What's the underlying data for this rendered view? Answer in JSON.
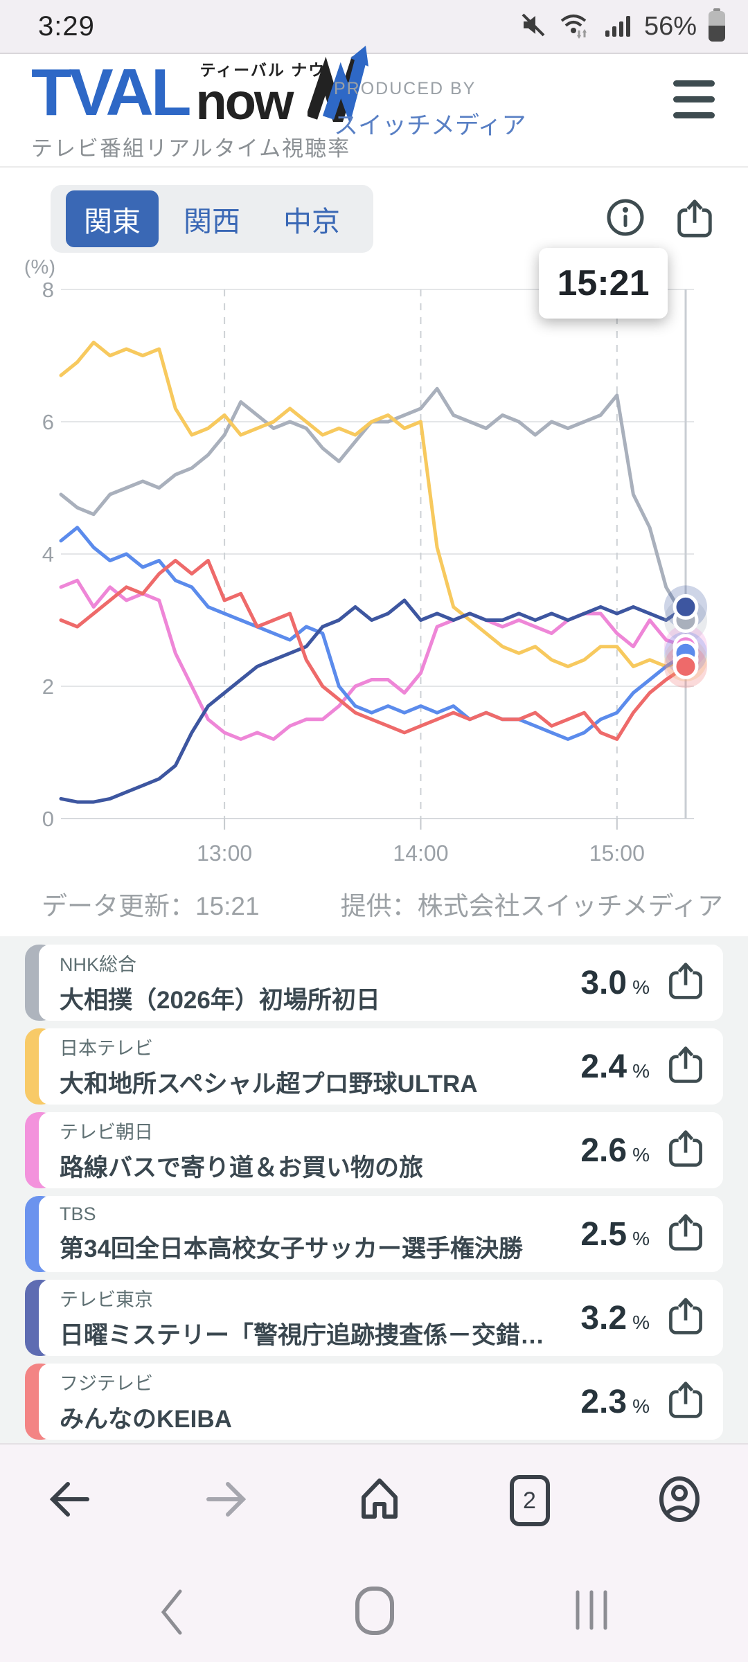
{
  "status_bar": {
    "time": "3:29",
    "battery_percent": "56%"
  },
  "header": {
    "logo_tval": "TVAL",
    "logo_now": "now",
    "logo_furigana": "ティーバル ナウ",
    "tagline": "テレビ番組リアルタイム視聴率",
    "produced_by": "PRODUCED BY",
    "producer": "スイッチメディア"
  },
  "region_tabs": [
    {
      "label": "関東",
      "selected": true
    },
    {
      "label": "関西",
      "selected": false
    },
    {
      "label": "中京",
      "selected": false
    }
  ],
  "chart": {
    "tooltip_time": "15:21",
    "unit_label": "(%)",
    "update_label": "データ更新：15:21",
    "provider_label": "提供：株式会社スイッチメディア"
  },
  "chart_data": {
    "type": "line",
    "title": "テレビ番組リアルタイム視聴率（関東）",
    "ylabel": "(%)",
    "ylim": [
      0,
      8
    ],
    "yticks": [
      8,
      6,
      4,
      2,
      0
    ],
    "x_unit": "minutes from 12:10",
    "x_minutes": [
      0,
      5,
      10,
      15,
      20,
      25,
      30,
      35,
      40,
      45,
      50,
      55,
      60,
      65,
      70,
      75,
      80,
      85,
      90,
      95,
      100,
      105,
      110,
      115,
      120,
      125,
      130,
      135,
      140,
      145,
      150,
      155,
      160,
      165,
      170,
      175,
      180,
      185,
      191
    ],
    "xticks": [
      {
        "t": 50,
        "label": "13:00"
      },
      {
        "t": 110,
        "label": "14:00"
      },
      {
        "t": 170,
        "label": "15:00"
      }
    ],
    "current_time_minute": 191,
    "grid": true,
    "series": [
      {
        "name": "NHK総合",
        "color": "#a9b0bc",
        "values": [
          4.9,
          4.7,
          4.6,
          4.9,
          5.0,
          5.1,
          5.0,
          5.2,
          5.3,
          5.5,
          5.8,
          6.3,
          6.1,
          5.9,
          6.0,
          5.9,
          5.6,
          5.4,
          5.7,
          6.0,
          6.0,
          6.1,
          6.2,
          6.5,
          6.1,
          6.0,
          5.9,
          6.1,
          6.0,
          5.8,
          6.0,
          5.9,
          6.0,
          6.1,
          6.4,
          4.9,
          4.4,
          3.5,
          3.0
        ]
      },
      {
        "name": "日本テレビ",
        "color": "#f7c95e",
        "values": [
          6.7,
          6.9,
          7.2,
          7.0,
          7.1,
          7.0,
          7.1,
          6.2,
          5.8,
          5.9,
          6.1,
          5.8,
          5.9,
          6.0,
          6.2,
          6.0,
          5.8,
          5.9,
          5.8,
          6.0,
          6.1,
          5.9,
          6.0,
          4.1,
          3.2,
          3.0,
          2.8,
          2.6,
          2.5,
          2.6,
          2.4,
          2.3,
          2.4,
          2.6,
          2.6,
          2.3,
          2.4,
          2.3,
          2.4
        ]
      },
      {
        "name": "テレビ朝日",
        "color": "#ee86d7",
        "values": [
          3.5,
          3.6,
          3.2,
          3.5,
          3.3,
          3.4,
          3.3,
          2.5,
          2.0,
          1.5,
          1.3,
          1.2,
          1.3,
          1.2,
          1.4,
          1.5,
          1.5,
          1.7,
          2.0,
          2.1,
          2.1,
          1.9,
          2.2,
          2.9,
          3.0,
          3.1,
          3.0,
          2.9,
          3.0,
          2.9,
          2.8,
          3.0,
          3.1,
          3.1,
          2.8,
          2.6,
          3.0,
          2.7,
          2.6
        ]
      },
      {
        "name": "TBS",
        "color": "#5b8bec",
        "values": [
          4.2,
          4.4,
          4.1,
          3.9,
          4.0,
          3.8,
          3.9,
          3.6,
          3.5,
          3.2,
          3.1,
          3.0,
          2.9,
          2.8,
          2.7,
          2.9,
          2.8,
          2.0,
          1.7,
          1.6,
          1.7,
          1.6,
          1.7,
          1.6,
          1.7,
          1.5,
          1.6,
          1.5,
          1.5,
          1.4,
          1.3,
          1.2,
          1.3,
          1.5,
          1.6,
          1.9,
          2.1,
          2.3,
          2.5
        ]
      },
      {
        "name": "テレビ東京",
        "color": "#3d56a0",
        "values": [
          0.3,
          0.25,
          0.25,
          0.3,
          0.4,
          0.5,
          0.6,
          0.8,
          1.3,
          1.7,
          1.9,
          2.1,
          2.3,
          2.4,
          2.5,
          2.6,
          2.9,
          3.0,
          3.2,
          3.0,
          3.1,
          3.3,
          3.0,
          3.1,
          3.0,
          3.1,
          3.0,
          3.0,
          3.1,
          3.0,
          3.1,
          3.0,
          3.1,
          3.2,
          3.1,
          3.2,
          3.1,
          3.0,
          3.2
        ]
      },
      {
        "name": "フジテレビ",
        "color": "#ee6a6a",
        "values": [
          3.0,
          2.9,
          3.1,
          3.3,
          3.5,
          3.4,
          3.7,
          3.9,
          3.7,
          3.9,
          3.3,
          3.4,
          2.9,
          3.0,
          3.1,
          2.4,
          2.0,
          1.8,
          1.6,
          1.5,
          1.4,
          1.3,
          1.4,
          1.5,
          1.6,
          1.5,
          1.6,
          1.5,
          1.5,
          1.6,
          1.4,
          1.5,
          1.6,
          1.3,
          1.2,
          1.6,
          1.9,
          2.1,
          2.3
        ]
      }
    ],
    "legend_position": "none"
  },
  "programs": [
    {
      "station": "NHK総合",
      "title": "大相撲（2026年）初場所初日",
      "rating": "3.0",
      "unit": "%",
      "strip_color": "#aeb4bd"
    },
    {
      "station": "日本テレビ",
      "title": "大和地所スペシャル超プロ野球ULTRA",
      "rating": "2.4",
      "unit": "%",
      "strip_color": "#f8ca67"
    },
    {
      "station": "テレビ朝日",
      "title": "路線バスで寄り道＆お買い物の旅",
      "rating": "2.6",
      "unit": "%",
      "strip_color": "#f392dc"
    },
    {
      "station": "TBS",
      "title": "第34回全日本高校女子サッカー選手権決勝",
      "rating": "2.5",
      "unit": "%",
      "strip_color": "#6b93ee"
    },
    {
      "station": "テレビ東京",
      "title": "日曜ミステリー「警視庁追跡捜査係－交錯…",
      "rating": "3.2",
      "unit": "%",
      "strip_color": "#5e6cb2"
    },
    {
      "station": "フジテレビ",
      "title": "みんなのKEIBA",
      "rating": "2.3",
      "unit": "%",
      "strip_color": "#f38484"
    }
  ],
  "browser_toolbar": {
    "tab_count": "2"
  },
  "icons": [
    "mute-icon",
    "wifi-icon",
    "signal-icon",
    "battery-icon",
    "menu-icon",
    "info-icon",
    "share-icon",
    "back-icon",
    "forward-icon",
    "home-icon",
    "tabs-icon",
    "profile-icon",
    "nav-back-icon",
    "nav-home-icon",
    "nav-recents-icon"
  ],
  "colors": {
    "accent_blue": "#3a68b5",
    "logo_blue": "#2e68c6",
    "dark_slate": "#3e4c50",
    "gridline": "#e4e6e8",
    "axis_text": "#9ba1a7"
  }
}
